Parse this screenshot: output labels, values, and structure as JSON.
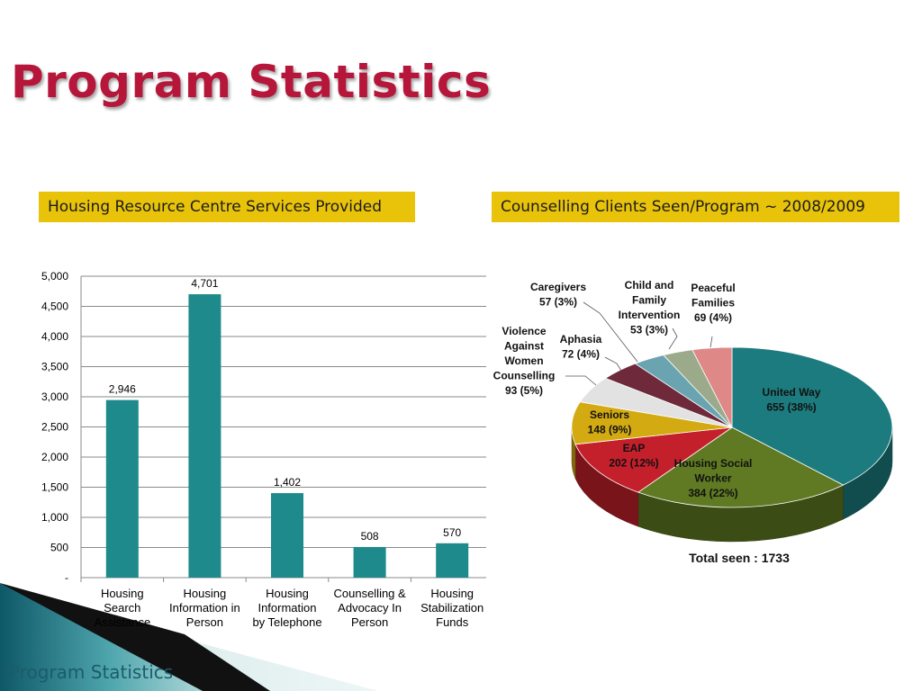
{
  "slide": {
    "title": "Program Statistics",
    "footer": "Program Statistics"
  },
  "colors": {
    "title": "#b5163a",
    "banner_bg": "#e8c30a",
    "bar": "#1e8a8c",
    "footer_text": "#1b5c6a"
  },
  "chart_data": [
    {
      "type": "bar",
      "title": "Housing Resource Centre Services Provided",
      "categories": [
        [
          "Housing",
          "Search",
          "Assistance"
        ],
        [
          "Housing",
          "Information in",
          "Person"
        ],
        [
          "Housing",
          "Information",
          "by Telephone"
        ],
        [
          "Counselling &",
          "Advocacy In",
          "Person"
        ],
        [
          "Housing",
          "Stabilization",
          "Funds"
        ]
      ],
      "values": [
        2946,
        4701,
        1402,
        508,
        570
      ],
      "data_labels": [
        "2,946",
        "4,701",
        "1,402",
        "508",
        "570"
      ],
      "ylim": [
        0,
        5000
      ],
      "yticks": [
        0,
        500,
        1000,
        1500,
        2000,
        2500,
        3000,
        3500,
        4000,
        4500,
        5000
      ],
      "ytick_labels": [
        "-",
        "500",
        "1,000",
        "1,500",
        "2,000",
        "2,500",
        "3,000",
        "3,500",
        "4,000",
        "4,500",
        "5,000"
      ],
      "grid": true,
      "color": "#1e8a8c"
    },
    {
      "type": "pie",
      "title": "Counselling Clients Seen/Program ~ 2008/2009",
      "slices": [
        {
          "label": [
            "United Way",
            "655 (38%)"
          ],
          "value": 655,
          "percent": 38,
          "color": "#1c7b7e"
        },
        {
          "label": [
            "Housing Social",
            "Worker",
            "384 (22%)"
          ],
          "value": 384,
          "percent": 22,
          "color": "#5f7a22"
        },
        {
          "label": [
            "EAP",
            "202 (12%)"
          ],
          "value": 202,
          "percent": 12,
          "color": "#c4202b"
        },
        {
          "label": [
            "Seniors",
            "148 (9%)"
          ],
          "value": 148,
          "percent": 9,
          "color": "#d4aa12"
        },
        {
          "label": [
            "Violence",
            "Against",
            "Women",
            "Counselling",
            "93 (5%)"
          ],
          "value": 93,
          "percent": 5,
          "color": "#e2e2e2"
        },
        {
          "label": [
            "Aphasia",
            "72 (4%)"
          ],
          "value": 72,
          "percent": 4,
          "color": "#6e2a3a"
        },
        {
          "label": [
            "Caregivers",
            "57 (3%)"
          ],
          "value": 57,
          "percent": 3,
          "color": "#6aa4b0"
        },
        {
          "label": [
            "Child and",
            "Family",
            "Intervention",
            "53 (3%)"
          ],
          "value": 53,
          "percent": 3,
          "color": "#9aaa8a"
        },
        {
          "label": [
            "Peaceful",
            "Families",
            "69 (4%)"
          ],
          "value": 69,
          "percent": 4,
          "color": "#de8888"
        }
      ],
      "total_label": "Total seen : 1733"
    }
  ]
}
